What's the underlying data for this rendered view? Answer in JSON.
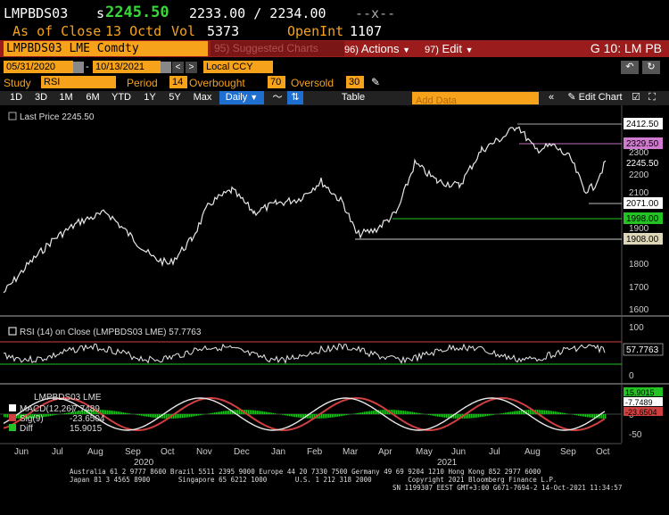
{
  "header": {
    "ticker": "LMPBDS03",
    "price_prefix": "s",
    "price": "2245.50",
    "bid_ask": "2233.00 / 2234.00",
    "bid_ask_close": "--x--",
    "as_of_label": "As of Close",
    "as_of_date": "13 Octd",
    "vol_label": "Vol",
    "vol_value": "5373",
    "openint_label": "OpenInt",
    "openint_value": "1107"
  },
  "toolbar": {
    "security": "LMPBDS03 LME Comdty",
    "suggested": "Suggested Charts",
    "actions": "Actions",
    "edit": "Edit",
    "graph_id": "G 10: LM PB",
    "actions_num": "96)",
    "edit_num": "97)",
    "suggested_num": "95)"
  },
  "date_range": {
    "start": "05/31/2020",
    "end": "10/13/2021",
    "currency": "Local CCY"
  },
  "study": {
    "label": "Study",
    "name": "RSI",
    "period_label": "Period",
    "period": "14",
    "overbought_label": "Overbought",
    "overbought": "70",
    "oversold_label": "Oversold",
    "oversold": "30"
  },
  "periods": [
    "1D",
    "3D",
    "1M",
    "6M",
    "YTD",
    "1Y",
    "5Y",
    "Max"
  ],
  "frequency": "Daily",
  "table_label": "Table",
  "add_data_placeholder": "Add Data",
  "edit_chart": "Edit Chart",
  "legend": {
    "last_price": "Last Price 2245.50",
    "rsi": "RSI (14)  on Close (LMPBDS03 LME) 57.7763",
    "macd_title": "LMPBDS03 LME",
    "macd": "MACD(12,26)",
    "macd_val": "-7.7489",
    "sig": "Sig(9)",
    "sig_val": "-23.6504",
    "diff": "Diff",
    "diff_val": "15.9015"
  },
  "price_tags": [
    {
      "label": "2412.50",
      "color": "#ffffff",
      "text": "#000"
    },
    {
      "label": "2329.50",
      "color": "#d07bd0",
      "text": "#000"
    },
    {
      "label": "2245.50",
      "color": "#000000",
      "text": "#fff"
    },
    {
      "label": "2071.00",
      "color": "#ffffff",
      "text": "#000"
    },
    {
      "label": "1998.00",
      "color": "#22c322",
      "text": "#000"
    },
    {
      "label": "1908.00",
      "color": "#ddd6b8",
      "text": "#000"
    }
  ],
  "price_axis": [
    "2300",
    "2200",
    "2100",
    "1900",
    "1800",
    "1700",
    "1600"
  ],
  "rsi_axis": [
    "100",
    "0"
  ],
  "rsi_tag": "57.7763",
  "macd_axis": [
    "50",
    "0",
    "-50"
  ],
  "macd_tags": [
    {
      "label": "15.9015",
      "color": "#22c322"
    },
    {
      "label": "-7.7489",
      "color": "#ffffff"
    },
    {
      "label": "-23.6504",
      "color": "#d04040"
    }
  ],
  "x_months": [
    "Jun",
    "Jul",
    "Aug",
    "Sep",
    "Oct",
    "Nov",
    "Dec",
    "Jan",
    "Feb",
    "Mar",
    "Apr",
    "May",
    "Jun",
    "Jul",
    "Aug",
    "Sep",
    "Oct"
  ],
  "x_years": [
    "2020",
    "2021"
  ],
  "footer": {
    "line1": "Australia 61 2 9777 8600 Brazil 5511 2395 9000 Europe 44 20 7330 7500 Germany 49 69 9204 1210 Hong Kong 852 2977 6000",
    "line2": "Japan 81 3 4565 8900       Singapore 65 6212 1000       U.S. 1 212 318 2000         Copyright 2021 Bloomberg Finance L.P.",
    "line3": "SN 1199307 EEST GMT+3:00 G671-7694-2 14-Oct-2021 11:34:57"
  },
  "colors": {
    "amber": "#f7a21b",
    "bloomberg_red": "#9b1c1c",
    "selected_blue": "#1f6fd1"
  }
}
